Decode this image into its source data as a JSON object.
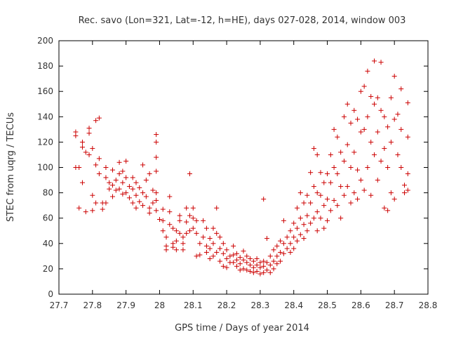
{
  "chart_data": {
    "type": "scatter",
    "title": "Rec. savo (Lon=321, Lat=-12, h=HE), days 027-028, 2014, window 003",
    "xlabel": "GPS time / Days of year 2014",
    "ylabel": "STEC from uqrg / TECUs",
    "xlim": [
      27.7,
      28.8
    ],
    "ylim": [
      0,
      200
    ],
    "x_ticks": [
      "27.7",
      "27.8",
      "27.9",
      "28",
      "28.1",
      "28.2",
      "28.3",
      "28.4",
      "28.5",
      "28.6",
      "28.7",
      "28.8"
    ],
    "y_ticks": [
      "0",
      "20",
      "40",
      "60",
      "80",
      "100",
      "120",
      "140",
      "160",
      "180",
      "200"
    ],
    "marker": "+",
    "grid": false,
    "colors": {
      "series": "#cc0000",
      "frame": "#000000",
      "text": "#333333"
    },
    "series": [
      {
        "name": "STEC",
        "points": [
          [
            27.75,
            128
          ],
          [
            27.75,
            125
          ],
          [
            27.75,
            100
          ],
          [
            27.76,
            100
          ],
          [
            27.76,
            68
          ],
          [
            27.77,
            88
          ],
          [
            27.77,
            120
          ],
          [
            27.77,
            116
          ],
          [
            27.78,
            112
          ],
          [
            27.78,
            65
          ],
          [
            27.79,
            131
          ],
          [
            27.79,
            127
          ],
          [
            27.79,
            110
          ],
          [
            27.8,
            115
          ],
          [
            27.8,
            78
          ],
          [
            27.8,
            66
          ],
          [
            27.81,
            137
          ],
          [
            27.81,
            102
          ],
          [
            27.81,
            72
          ],
          [
            27.82,
            139
          ],
          [
            27.82,
            107
          ],
          [
            27.82,
            95
          ],
          [
            27.83,
            67
          ],
          [
            27.83,
            72
          ],
          [
            27.84,
            100
          ],
          [
            27.84,
            92
          ],
          [
            27.84,
            72
          ],
          [
            27.85,
            88
          ],
          [
            27.85,
            83
          ],
          [
            27.86,
            98
          ],
          [
            27.86,
            86
          ],
          [
            27.86,
            77
          ],
          [
            27.87,
            90
          ],
          [
            27.87,
            82
          ],
          [
            27.88,
            104
          ],
          [
            27.88,
            95
          ],
          [
            27.88,
            83
          ],
          [
            27.89,
            97
          ],
          [
            27.89,
            88
          ],
          [
            27.89,
            79
          ],
          [
            27.9,
            105
          ],
          [
            27.9,
            92
          ],
          [
            27.9,
            80
          ],
          [
            27.91,
            85
          ],
          [
            27.91,
            76
          ],
          [
            27.92,
            92
          ],
          [
            27.92,
            83
          ],
          [
            27.92,
            72
          ],
          [
            27.93,
            88
          ],
          [
            27.93,
            78
          ],
          [
            27.93,
            68
          ],
          [
            27.94,
            84
          ],
          [
            27.94,
            73
          ],
          [
            27.95,
            102
          ],
          [
            27.95,
            80
          ],
          [
            27.95,
            70
          ],
          [
            27.96,
            90
          ],
          [
            27.96,
            77
          ],
          [
            27.97,
            95
          ],
          [
            27.97,
            68
          ],
          [
            27.97,
            64
          ],
          [
            27.98,
            82
          ],
          [
            27.98,
            72
          ],
          [
            27.99,
            126
          ],
          [
            27.99,
            120
          ],
          [
            27.99,
            108
          ],
          [
            27.99,
            97
          ],
          [
            27.99,
            80
          ],
          [
            27.99,
            74
          ],
          [
            27.99,
            66
          ],
          [
            28.0,
            59
          ],
          [
            28.01,
            67
          ],
          [
            28.01,
            58
          ],
          [
            28.01,
            50
          ],
          [
            28.02,
            45
          ],
          [
            28.02,
            38
          ],
          [
            28.02,
            35
          ],
          [
            28.03,
            77
          ],
          [
            28.03,
            65
          ],
          [
            28.03,
            55
          ],
          [
            28.04,
            52
          ],
          [
            28.04,
            40
          ],
          [
            28.04,
            37
          ],
          [
            28.05,
            50
          ],
          [
            28.05,
            42
          ],
          [
            28.05,
            35
          ],
          [
            28.06,
            62
          ],
          [
            28.06,
            58
          ],
          [
            28.06,
            48
          ],
          [
            28.07,
            45
          ],
          [
            28.07,
            40
          ],
          [
            28.07,
            35
          ],
          [
            28.08,
            68
          ],
          [
            28.08,
            57
          ],
          [
            28.08,
            48
          ],
          [
            28.09,
            95
          ],
          [
            28.09,
            62
          ],
          [
            28.09,
            50
          ],
          [
            28.1,
            68
          ],
          [
            28.1,
            60
          ],
          [
            28.1,
            52
          ],
          [
            28.11,
            58
          ],
          [
            28.11,
            48
          ],
          [
            28.11,
            30
          ],
          [
            28.12,
            40
          ],
          [
            28.12,
            31
          ],
          [
            28.13,
            58
          ],
          [
            28.13,
            45
          ],
          [
            28.14,
            52
          ],
          [
            28.14,
            38
          ],
          [
            28.14,
            33
          ],
          [
            28.15,
            44
          ],
          [
            28.15,
            36
          ],
          [
            28.15,
            28
          ],
          [
            28.16,
            52
          ],
          [
            28.16,
            40
          ],
          [
            28.16,
            30
          ],
          [
            28.17,
            68
          ],
          [
            28.17,
            48
          ],
          [
            28.17,
            33
          ],
          [
            28.18,
            45
          ],
          [
            28.18,
            36
          ],
          [
            28.18,
            26
          ],
          [
            28.19,
            40
          ],
          [
            28.19,
            32
          ],
          [
            28.19,
            22
          ],
          [
            28.2,
            35
          ],
          [
            28.2,
            28
          ],
          [
            28.2,
            21
          ],
          [
            28.21,
            30
          ],
          [
            28.21,
            25
          ],
          [
            28.22,
            38
          ],
          [
            28.22,
            31
          ],
          [
            28.22,
            25
          ],
          [
            28.23,
            32
          ],
          [
            28.23,
            27
          ],
          [
            28.23,
            22
          ],
          [
            28.24,
            29
          ],
          [
            28.24,
            24
          ],
          [
            28.24,
            19
          ],
          [
            28.25,
            34
          ],
          [
            28.25,
            27
          ],
          [
            28.25,
            20
          ],
          [
            28.26,
            30
          ],
          [
            28.26,
            25
          ],
          [
            28.26,
            19
          ],
          [
            28.27,
            28
          ],
          [
            28.27,
            23
          ],
          [
            28.27,
            18
          ],
          [
            28.28,
            26
          ],
          [
            28.28,
            21
          ],
          [
            28.28,
            17
          ],
          [
            28.29,
            28
          ],
          [
            28.29,
            23
          ],
          [
            28.29,
            18
          ],
          [
            28.3,
            25
          ],
          [
            28.3,
            21
          ],
          [
            28.3,
            16
          ],
          [
            28.31,
            75
          ],
          [
            28.31,
            26
          ],
          [
            28.31,
            22
          ],
          [
            28.31,
            17
          ],
          [
            28.32,
            44
          ],
          [
            28.32,
            25
          ],
          [
            28.32,
            19
          ],
          [
            28.33,
            30
          ],
          [
            28.33,
            23
          ],
          [
            28.33,
            17
          ],
          [
            28.34,
            35
          ],
          [
            28.34,
            26
          ],
          [
            28.34,
            20
          ],
          [
            28.35,
            38
          ],
          [
            28.35,
            30
          ],
          [
            28.35,
            24
          ],
          [
            28.36,
            42
          ],
          [
            28.36,
            33
          ],
          [
            28.36,
            26
          ],
          [
            28.37,
            58
          ],
          [
            28.37,
            40
          ],
          [
            28.37,
            32
          ],
          [
            28.38,
            45
          ],
          [
            28.38,
            36
          ],
          [
            28.39,
            50
          ],
          [
            28.39,
            40
          ],
          [
            28.39,
            33
          ],
          [
            28.4,
            56
          ],
          [
            28.4,
            45
          ],
          [
            28.4,
            36
          ],
          [
            28.41,
            68
          ],
          [
            28.41,
            52
          ],
          [
            28.41,
            42
          ],
          [
            28.42,
            80
          ],
          [
            28.42,
            60
          ],
          [
            28.42,
            47
          ],
          [
            28.43,
            72
          ],
          [
            28.43,
            55
          ],
          [
            28.43,
            44
          ],
          [
            28.44,
            78
          ],
          [
            28.44,
            62
          ],
          [
            28.44,
            50
          ],
          [
            28.45,
            96
          ],
          [
            28.45,
            72
          ],
          [
            28.45,
            56
          ],
          [
            28.46,
            115
          ],
          [
            28.46,
            85
          ],
          [
            28.46,
            60
          ],
          [
            28.47,
            110
          ],
          [
            28.47,
            80
          ],
          [
            28.47,
            65
          ],
          [
            28.47,
            50
          ],
          [
            28.48,
            96
          ],
          [
            28.48,
            78
          ],
          [
            28.48,
            60
          ],
          [
            28.49,
            88
          ],
          [
            28.49,
            70
          ],
          [
            28.49,
            52
          ],
          [
            28.5,
            95
          ],
          [
            28.5,
            75
          ],
          [
            28.5,
            58
          ],
          [
            28.51,
            110
          ],
          [
            28.51,
            88
          ],
          [
            28.51,
            66
          ],
          [
            28.52,
            130
          ],
          [
            28.52,
            100
          ],
          [
            28.52,
            74
          ],
          [
            28.53,
            124
          ],
          [
            28.53,
            95
          ],
          [
            28.53,
            70
          ],
          [
            28.54,
            112
          ],
          [
            28.54,
            85
          ],
          [
            28.54,
            60
          ],
          [
            28.55,
            140
          ],
          [
            28.55,
            105
          ],
          [
            28.55,
            78
          ],
          [
            28.56,
            150
          ],
          [
            28.56,
            118
          ],
          [
            28.56,
            85
          ],
          [
            28.57,
            135
          ],
          [
            28.57,
            100
          ],
          [
            28.57,
            72
          ],
          [
            28.58,
            145
          ],
          [
            28.58,
            112
          ],
          [
            28.58,
            80
          ],
          [
            28.59,
            138
          ],
          [
            28.59,
            98
          ],
          [
            28.59,
            75
          ],
          [
            28.6,
            160
          ],
          [
            28.6,
            128
          ],
          [
            28.6,
            90
          ],
          [
            28.61,
            164
          ],
          [
            28.61,
            130
          ],
          [
            28.61,
            82
          ],
          [
            28.62,
            176
          ],
          [
            28.62,
            140
          ],
          [
            28.62,
            100
          ],
          [
            28.63,
            156
          ],
          [
            28.63,
            120
          ],
          [
            28.63,
            78
          ],
          [
            28.64,
            184
          ],
          [
            28.64,
            150
          ],
          [
            28.64,
            110
          ],
          [
            28.65,
            155
          ],
          [
            28.65,
            128
          ],
          [
            28.65,
            90
          ],
          [
            28.66,
            183
          ],
          [
            28.66,
            145
          ],
          [
            28.66,
            105
          ],
          [
            28.67,
            140
          ],
          [
            28.67,
            115
          ],
          [
            28.67,
            68
          ],
          [
            28.68,
            132
          ],
          [
            28.68,
            100
          ],
          [
            28.68,
            66
          ],
          [
            28.69,
            155
          ],
          [
            28.69,
            120
          ],
          [
            28.69,
            80
          ],
          [
            28.7,
            172
          ],
          [
            28.7,
            138
          ],
          [
            28.7,
            75
          ],
          [
            28.71,
            142
          ],
          [
            28.71,
            110
          ],
          [
            28.72,
            162
          ],
          [
            28.72,
            130
          ],
          [
            28.72,
            100
          ],
          [
            28.73,
            86
          ],
          [
            28.73,
            80
          ],
          [
            28.74,
            151
          ],
          [
            28.74,
            124
          ],
          [
            28.74,
            95
          ],
          [
            28.74,
            82
          ]
        ]
      }
    ]
  }
}
